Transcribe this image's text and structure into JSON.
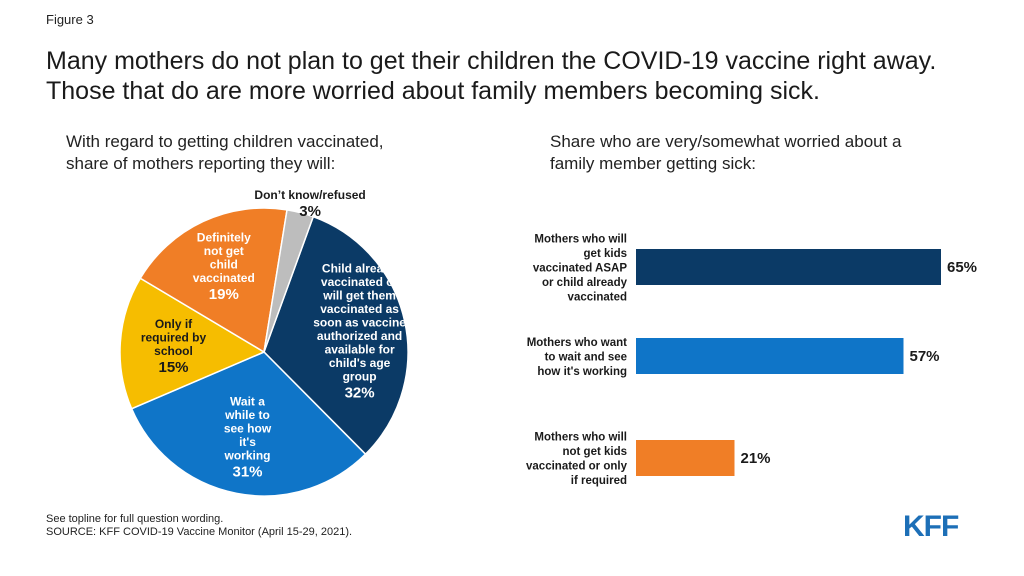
{
  "figure_label": "Figure 3",
  "headline": {
    "line1": "Many mothers do not plan to get their children the COVID-19 vaccine right away.",
    "line2": "Those that do are more worried about family members becoming sick."
  },
  "pie_subtitle": {
    "line1": "With regard to getting children vaccinated,",
    "line2": "share of mothers reporting they will:"
  },
  "bar_subtitle": {
    "line1": "Share who are very/somewhat worried about a",
    "line2": "family member getting sick:"
  },
  "footnote": {
    "line1": "See topline for full question wording.",
    "line2": "SOURCE: KFF COVID-19 Vaccine Monitor (April 15-29, 2021)."
  },
  "logo": "KFF",
  "colors": {
    "navy": "#0b3a66",
    "blue": "#0f75c8",
    "gold": "#f6bd00",
    "orange": "#f07e26",
    "gray": "#bdbdbd"
  },
  "chart_data": [
    {
      "type": "pie",
      "slices": [
        {
          "label_lines": [
            "Child already",
            "vaccinated or",
            "will get them",
            "vaccinated as",
            "soon as vaccine",
            "authorized and",
            "available for",
            "child's age",
            "group"
          ],
          "value": 32,
          "value_label": "32%",
          "color": "#0b3a66"
        },
        {
          "label_lines": [
            "Wait a",
            "while to",
            "see how",
            "it's",
            "working"
          ],
          "value": 31,
          "value_label": "31%",
          "color": "#0f75c8"
        },
        {
          "label_lines": [
            "Only if",
            "required by",
            "school"
          ],
          "value": 15,
          "value_label": "15%",
          "color": "#f6bd00"
        },
        {
          "label_lines": [
            "Definitely",
            "not get",
            "child",
            "vaccinated"
          ],
          "value": 19,
          "value_label": "19%",
          "color": "#f07e26"
        },
        {
          "label_lines": [
            "Don’t know/refused"
          ],
          "value": 3,
          "value_label": "3%",
          "color": "#bdbdbd"
        }
      ]
    },
    {
      "type": "bar",
      "orientation": "horizontal",
      "categories": [
        [
          "Mothers who will",
          "get kids",
          "vaccinated ASAP",
          "or child already",
          "vaccinated"
        ],
        [
          "Mothers who want",
          "to wait and see",
          "how it's working"
        ],
        [
          "Mothers who will",
          "not get kids",
          "vaccinated or only",
          "if required"
        ]
      ],
      "values": [
        65,
        57,
        21
      ],
      "value_labels": [
        "65%",
        "57%",
        "21%"
      ],
      "colors": [
        "#0b3a66",
        "#0f75c8",
        "#f07e26"
      ],
      "xlim": [
        0,
        65
      ]
    }
  ]
}
